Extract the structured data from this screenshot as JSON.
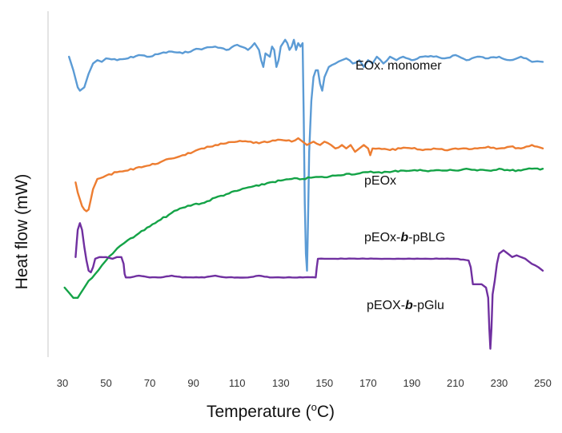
{
  "chart_data": {
    "type": "line",
    "title": "",
    "xlabel": "Temperature (",
    "xlabel_sup": "o",
    "xlabel_unit": "C)",
    "ylabel": "Heat flow (mW)",
    "xlim": [
      30,
      250
    ],
    "ylim": [
      0,
      100
    ],
    "x_ticks": [
      30,
      50,
      70,
      90,
      110,
      130,
      150,
      170,
      190,
      210,
      230,
      250
    ],
    "grid": false,
    "series": [
      {
        "name": "EOx. monomer",
        "label_parts": [
          {
            "text": "EOx. monomer",
            "italic": false
          }
        ],
        "color": "#5b9bd5",
        "points": [
          [
            33,
            88
          ],
          [
            35,
            84
          ],
          [
            37,
            79
          ],
          [
            38,
            78
          ],
          [
            40,
            79
          ],
          [
            42,
            83
          ],
          [
            44,
            86
          ],
          [
            46,
            87
          ],
          [
            48,
            86.5
          ],
          [
            50,
            87.5
          ],
          [
            55,
            87
          ],
          [
            60,
            87.5
          ],
          [
            65,
            88.5
          ],
          [
            70,
            88
          ],
          [
            75,
            89
          ],
          [
            80,
            89.5
          ],
          [
            85,
            89
          ],
          [
            90,
            90
          ],
          [
            95,
            90.5
          ],
          [
            100,
            91
          ],
          [
            105,
            90
          ],
          [
            110,
            91.5
          ],
          [
            115,
            90
          ],
          [
            118,
            92
          ],
          [
            120,
            90
          ],
          [
            121,
            87
          ],
          [
            122,
            85
          ],
          [
            123,
            89
          ],
          [
            125,
            88
          ],
          [
            126,
            91
          ],
          [
            127,
            90
          ],
          [
            128,
            85
          ],
          [
            129,
            87
          ],
          [
            130,
            91
          ],
          [
            132,
            93
          ],
          [
            133,
            92
          ],
          [
            134,
            90
          ],
          [
            135,
            91
          ],
          [
            136,
            93
          ],
          [
            137,
            90
          ],
          [
            138,
            92
          ],
          [
            139,
            91
          ],
          [
            140,
            92
          ],
          [
            140.5,
            70
          ],
          [
            141,
            45
          ],
          [
            141.5,
            30
          ],
          [
            142,
            25
          ],
          [
            142.5,
            40
          ],
          [
            143,
            60
          ],
          [
            144,
            75
          ],
          [
            145,
            82
          ],
          [
            146,
            84
          ],
          [
            147,
            84
          ],
          [
            148,
            80
          ],
          [
            149,
            78
          ],
          [
            150,
            82
          ],
          [
            152,
            85
          ],
          [
            155,
            86
          ],
          [
            158,
            87
          ],
          [
            160,
            87.5
          ],
          [
            163,
            86
          ],
          [
            166,
            87
          ],
          [
            168,
            85
          ],
          [
            170,
            87
          ],
          [
            172,
            86
          ],
          [
            174,
            88
          ],
          [
            177,
            86
          ],
          [
            180,
            88
          ],
          [
            183,
            87
          ],
          [
            186,
            88
          ],
          [
            190,
            87
          ],
          [
            195,
            88
          ],
          [
            200,
            88
          ],
          [
            205,
            87.5
          ],
          [
            210,
            88.5
          ],
          [
            215,
            87
          ],
          [
            220,
            88
          ],
          [
            225,
            87.5
          ],
          [
            230,
            88
          ],
          [
            235,
            87
          ],
          [
            240,
            88
          ],
          [
            245,
            86.5
          ],
          [
            250,
            86.5
          ]
        ]
      },
      {
        "name": "pEOx",
        "label_parts": [
          {
            "text": "pEOx",
            "italic": false
          }
        ],
        "color": "#ed7d31",
        "points": [
          [
            36,
            51
          ],
          [
            37,
            48
          ],
          [
            38,
            46
          ],
          [
            39,
            44
          ],
          [
            40,
            43
          ],
          [
            41,
            42.5
          ],
          [
            42,
            43
          ],
          [
            43,
            46
          ],
          [
            44,
            49
          ],
          [
            46,
            52
          ],
          [
            50,
            53
          ],
          [
            55,
            54
          ],
          [
            60,
            54.5
          ],
          [
            65,
            55.5
          ],
          [
            70,
            56
          ],
          [
            75,
            57
          ],
          [
            80,
            58
          ],
          [
            85,
            59
          ],
          [
            90,
            60
          ],
          [
            95,
            61
          ],
          [
            100,
            62
          ],
          [
            105,
            62.5
          ],
          [
            110,
            63
          ],
          [
            115,
            63
          ],
          [
            120,
            62.5
          ],
          [
            125,
            63
          ],
          [
            130,
            63.5
          ],
          [
            135,
            63
          ],
          [
            138,
            64
          ],
          [
            140,
            63
          ],
          [
            142,
            62
          ],
          [
            145,
            63
          ],
          [
            148,
            62
          ],
          [
            150,
            63
          ],
          [
            153,
            62
          ],
          [
            155,
            61
          ],
          [
            158,
            62
          ],
          [
            160,
            61
          ],
          [
            162,
            62
          ],
          [
            164,
            60
          ],
          [
            166,
            61
          ],
          [
            168,
            62
          ],
          [
            170,
            61
          ],
          [
            171,
            59
          ],
          [
            172,
            61
          ],
          [
            175,
            61
          ],
          [
            180,
            60.5
          ],
          [
            185,
            61
          ],
          [
            190,
            61
          ],
          [
            195,
            60.5
          ],
          [
            200,
            61
          ],
          [
            205,
            60.5
          ],
          [
            210,
            61
          ],
          [
            215,
            61
          ],
          [
            220,
            61
          ],
          [
            225,
            61.5
          ],
          [
            230,
            61
          ],
          [
            235,
            61.5
          ],
          [
            240,
            61
          ],
          [
            245,
            62
          ],
          [
            250,
            61
          ]
        ]
      },
      {
        "name": "pEOx-b-pBLG",
        "label_parts": [
          {
            "text": "pEOx-",
            "italic": false
          },
          {
            "text": "b",
            "italic": true
          },
          {
            "text": "-pBLG",
            "italic": false
          }
        ],
        "color": "#14a347",
        "points": [
          [
            31,
            20
          ],
          [
            33,
            18.5
          ],
          [
            35,
            17
          ],
          [
            37,
            17
          ],
          [
            38,
            18
          ],
          [
            40,
            20
          ],
          [
            42,
            22
          ],
          [
            45,
            24
          ],
          [
            48,
            26.5
          ],
          [
            50,
            28
          ],
          [
            53,
            30
          ],
          [
            55,
            31.5
          ],
          [
            58,
            33
          ],
          [
            60,
            34
          ],
          [
            65,
            36
          ],
          [
            70,
            38
          ],
          [
            75,
            40
          ],
          [
            80,
            42
          ],
          [
            85,
            43.5
          ],
          [
            90,
            44.5
          ],
          [
            95,
            45
          ],
          [
            100,
            46.5
          ],
          [
            105,
            47.5
          ],
          [
            110,
            48.5
          ],
          [
            115,
            49.5
          ],
          [
            120,
            50
          ],
          [
            125,
            51
          ],
          [
            130,
            51.5
          ],
          [
            135,
            52
          ],
          [
            140,
            52
          ],
          [
            145,
            52.5
          ],
          [
            150,
            52.5
          ],
          [
            155,
            53
          ],
          [
            160,
            53.5
          ],
          [
            165,
            53.5
          ],
          [
            170,
            54
          ],
          [
            175,
            54
          ],
          [
            180,
            54
          ],
          [
            185,
            54.5
          ],
          [
            190,
            54.5
          ],
          [
            195,
            54.5
          ],
          [
            200,
            54.5
          ],
          [
            205,
            54.5
          ],
          [
            210,
            54.5
          ],
          [
            215,
            55
          ],
          [
            220,
            54.5
          ],
          [
            225,
            54.5
          ],
          [
            230,
            55
          ],
          [
            235,
            54.5
          ],
          [
            240,
            54.5
          ],
          [
            245,
            55
          ],
          [
            250,
            55
          ]
        ]
      },
      {
        "name": "pEOX-b-pGlu",
        "label_parts": [
          {
            "text": "pEOX-",
            "italic": false
          },
          {
            "text": "b",
            "italic": true
          },
          {
            "text": "-pGlu",
            "italic": false
          }
        ],
        "color": "#7030a0",
        "points": [
          [
            36,
            29
          ],
          [
            36.5,
            33
          ],
          [
            37,
            37
          ],
          [
            38,
            39
          ],
          [
            39,
            37
          ],
          [
            40,
            32
          ],
          [
            41,
            28
          ],
          [
            42,
            25
          ],
          [
            43,
            24.5
          ],
          [
            44,
            26
          ],
          [
            45,
            28.5
          ],
          [
            47,
            29
          ],
          [
            50,
            29
          ],
          [
            53,
            28.5
          ],
          [
            55,
            29
          ],
          [
            57,
            29
          ],
          [
            58,
            27
          ],
          [
            58.5,
            24
          ],
          [
            59,
            23
          ],
          [
            61,
            23
          ],
          [
            65,
            23.5
          ],
          [
            70,
            23
          ],
          [
            75,
            23
          ],
          [
            80,
            23.5
          ],
          [
            85,
            23
          ],
          [
            90,
            23
          ],
          [
            95,
            23
          ],
          [
            100,
            23.5
          ],
          [
            105,
            23
          ],
          [
            110,
            23
          ],
          [
            115,
            23
          ],
          [
            120,
            23.5
          ],
          [
            125,
            23
          ],
          [
            130,
            23
          ],
          [
            135,
            23
          ],
          [
            140,
            23
          ],
          [
            146,
            23
          ],
          [
            146.5,
            26
          ],
          [
            147,
            28.5
          ],
          [
            150,
            28.5
          ],
          [
            155,
            28.5
          ],
          [
            160,
            28.5
          ],
          [
            165,
            28.5
          ],
          [
            170,
            28.5
          ],
          [
            175,
            28.5
          ],
          [
            180,
            28.5
          ],
          [
            185,
            28.5
          ],
          [
            190,
            28.5
          ],
          [
            195,
            28.5
          ],
          [
            200,
            28.5
          ],
          [
            205,
            28.5
          ],
          [
            210,
            28.5
          ],
          [
            216,
            28
          ],
          [
            217,
            26
          ],
          [
            218,
            21
          ],
          [
            220,
            21
          ],
          [
            222,
            21
          ],
          [
            224,
            20
          ],
          [
            225,
            17
          ],
          [
            225.5,
            8
          ],
          [
            226,
            2
          ],
          [
            226.5,
            8
          ],
          [
            227,
            18
          ],
          [
            228,
            22
          ],
          [
            229,
            27
          ],
          [
            230,
            30
          ],
          [
            232,
            31
          ],
          [
            234,
            30
          ],
          [
            236,
            29
          ],
          [
            238,
            29.5
          ],
          [
            240,
            29
          ],
          [
            242,
            28.5
          ],
          [
            245,
            27
          ],
          [
            248,
            26
          ],
          [
            250,
            25
          ]
        ]
      }
    ]
  }
}
